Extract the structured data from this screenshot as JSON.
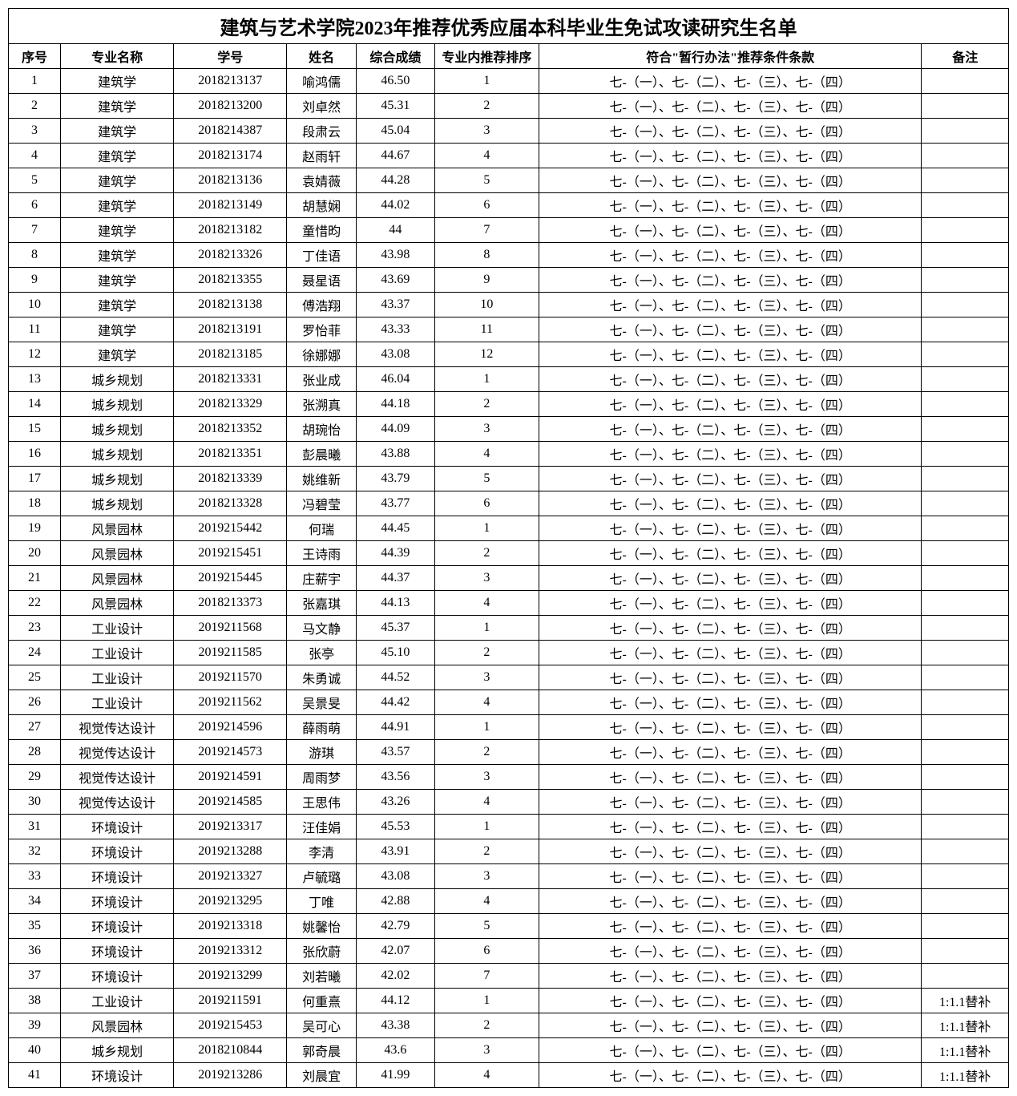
{
  "title": "建筑与艺术学院2023年推荐优秀应届本科毕业生免试攻读研究生名单",
  "columns": [
    "序号",
    "专业名称",
    "学号",
    "姓名",
    "综合成绩",
    "专业内推荐排序",
    "符合\"暂行办法\"推荐条件条款",
    "备注"
  ],
  "condition_text": "七-（一）、七-（二）、七-（三）、七-（四）",
  "remark_text": "1:1.1替补",
  "column_widths": {
    "seq": 60,
    "major": 130,
    "id": 130,
    "name": 80,
    "score": 90,
    "rank": 120,
    "cond": 440,
    "remark": 100
  },
  "font": {
    "family": "SimSun",
    "title_size": 24,
    "cell_size": 16
  },
  "colors": {
    "border": "#000000",
    "background": "#ffffff",
    "text": "#000000"
  },
  "rows": [
    {
      "seq": 1,
      "major": "建筑学",
      "id": "2018213137",
      "name": "喻鸿儒",
      "score": "46.50",
      "rank": 1,
      "remark": ""
    },
    {
      "seq": 2,
      "major": "建筑学",
      "id": "2018213200",
      "name": "刘卓然",
      "score": "45.31",
      "rank": 2,
      "remark": ""
    },
    {
      "seq": 3,
      "major": "建筑学",
      "id": "2018214387",
      "name": "段肃云",
      "score": "45.04",
      "rank": 3,
      "remark": ""
    },
    {
      "seq": 4,
      "major": "建筑学",
      "id": "2018213174",
      "name": "赵雨轩",
      "score": "44.67",
      "rank": 4,
      "remark": ""
    },
    {
      "seq": 5,
      "major": "建筑学",
      "id": "2018213136",
      "name": "袁婧薇",
      "score": "44.28",
      "rank": 5,
      "remark": ""
    },
    {
      "seq": 6,
      "major": "建筑学",
      "id": "2018213149",
      "name": "胡慧娴",
      "score": "44.02",
      "rank": 6,
      "remark": ""
    },
    {
      "seq": 7,
      "major": "建筑学",
      "id": "2018213182",
      "name": "童惜昀",
      "score": "44",
      "rank": 7,
      "remark": ""
    },
    {
      "seq": 8,
      "major": "建筑学",
      "id": "2018213326",
      "name": "丁佳语",
      "score": "43.98",
      "rank": 8,
      "remark": ""
    },
    {
      "seq": 9,
      "major": "建筑学",
      "id": "2018213355",
      "name": "聂星语",
      "score": "43.69",
      "rank": 9,
      "remark": ""
    },
    {
      "seq": 10,
      "major": "建筑学",
      "id": "2018213138",
      "name": "傅浩翔",
      "score": "43.37",
      "rank": 10,
      "remark": ""
    },
    {
      "seq": 11,
      "major": "建筑学",
      "id": "2018213191",
      "name": "罗怡菲",
      "score": "43.33",
      "rank": 11,
      "remark": ""
    },
    {
      "seq": 12,
      "major": "建筑学",
      "id": "2018213185",
      "name": "徐娜娜",
      "score": "43.08",
      "rank": 12,
      "remark": ""
    },
    {
      "seq": 13,
      "major": "城乡规划",
      "id": "2018213331",
      "name": "张业成",
      "score": "46.04",
      "rank": 1,
      "remark": ""
    },
    {
      "seq": 14,
      "major": "城乡规划",
      "id": "2018213329",
      "name": "张溯真",
      "score": "44.18",
      "rank": 2,
      "remark": ""
    },
    {
      "seq": 15,
      "major": "城乡规划",
      "id": "2018213352",
      "name": "胡琬怡",
      "score": "44.09",
      "rank": 3,
      "remark": ""
    },
    {
      "seq": 16,
      "major": "城乡规划",
      "id": "2018213351",
      "name": "彭晨曦",
      "score": "43.88",
      "rank": 4,
      "remark": ""
    },
    {
      "seq": 17,
      "major": "城乡规划",
      "id": "2018213339",
      "name": "姚维新",
      "score": "43.79",
      "rank": 5,
      "remark": ""
    },
    {
      "seq": 18,
      "major": "城乡规划",
      "id": "2018213328",
      "name": "冯碧莹",
      "score": "43.77",
      "rank": 6,
      "remark": ""
    },
    {
      "seq": 19,
      "major": "风景园林",
      "id": "2019215442",
      "name": "何瑞",
      "score": "44.45",
      "rank": 1,
      "remark": ""
    },
    {
      "seq": 20,
      "major": "风景园林",
      "id": "2019215451",
      "name": "王诗雨",
      "score": "44.39",
      "rank": 2,
      "remark": ""
    },
    {
      "seq": 21,
      "major": "风景园林",
      "id": "2019215445",
      "name": "庄薪宇",
      "score": "44.37",
      "rank": 3,
      "remark": ""
    },
    {
      "seq": 22,
      "major": "风景园林",
      "id": "2018213373",
      "name": "张嘉琪",
      "score": "44.13",
      "rank": 4,
      "remark": ""
    },
    {
      "seq": 23,
      "major": "工业设计",
      "id": "2019211568",
      "name": "马文静",
      "score": "45.37",
      "rank": 1,
      "remark": ""
    },
    {
      "seq": 24,
      "major": "工业设计",
      "id": "2019211585",
      "name": "张亭",
      "score": "45.10",
      "rank": 2,
      "remark": ""
    },
    {
      "seq": 25,
      "major": "工业设计",
      "id": "2019211570",
      "name": "朱勇诚",
      "score": "44.52",
      "rank": 3,
      "remark": ""
    },
    {
      "seq": 26,
      "major": "工业设计",
      "id": "2019211562",
      "name": "吴景旻",
      "score": "44.42",
      "rank": 4,
      "remark": ""
    },
    {
      "seq": 27,
      "major": "视觉传达设计",
      "id": "2019214596",
      "name": "薛雨萌",
      "score": "44.91",
      "rank": 1,
      "remark": ""
    },
    {
      "seq": 28,
      "major": "视觉传达设计",
      "id": "2019214573",
      "name": "游琪",
      "score": "43.57",
      "rank": 2,
      "remark": ""
    },
    {
      "seq": 29,
      "major": "视觉传达设计",
      "id": "2019214591",
      "name": "周雨梦",
      "score": "43.56",
      "rank": 3,
      "remark": ""
    },
    {
      "seq": 30,
      "major": "视觉传达设计",
      "id": "2019214585",
      "name": "王思伟",
      "score": "43.26",
      "rank": 4,
      "remark": ""
    },
    {
      "seq": 31,
      "major": "环境设计",
      "id": "2019213317",
      "name": "汪佳娟",
      "score": "45.53",
      "rank": 1,
      "remark": ""
    },
    {
      "seq": 32,
      "major": "环境设计",
      "id": "2019213288",
      "name": "李清",
      "score": "43.91",
      "rank": 2,
      "remark": ""
    },
    {
      "seq": 33,
      "major": "环境设计",
      "id": "2019213327",
      "name": "卢毓璐",
      "score": "43.08",
      "rank": 3,
      "remark": ""
    },
    {
      "seq": 34,
      "major": "环境设计",
      "id": "2019213295",
      "name": "丁唯",
      "score": "42.88",
      "rank": 4,
      "remark": ""
    },
    {
      "seq": 35,
      "major": "环境设计",
      "id": "2019213318",
      "name": "姚馨怡",
      "score": "42.79",
      "rank": 5,
      "remark": ""
    },
    {
      "seq": 36,
      "major": "环境设计",
      "id": "2019213312",
      "name": "张欣蔚",
      "score": "42.07",
      "rank": 6,
      "remark": ""
    },
    {
      "seq": 37,
      "major": "环境设计",
      "id": "2019213299",
      "name": "刘若曦",
      "score": "42.02",
      "rank": 7,
      "remark": ""
    },
    {
      "seq": 38,
      "major": "工业设计",
      "id": "2019211591",
      "name": "何重熹",
      "score": "44.12",
      "rank": 1,
      "remark": "1:1.1替补"
    },
    {
      "seq": 39,
      "major": "风景园林",
      "id": "2019215453",
      "name": "吴可心",
      "score": "43.38",
      "rank": 2,
      "remark": "1:1.1替补"
    },
    {
      "seq": 40,
      "major": "城乡规划",
      "id": "2018210844",
      "name": "郭奇晨",
      "score": "43.6",
      "rank": 3,
      "remark": "1:1.1替补"
    },
    {
      "seq": 41,
      "major": "环境设计",
      "id": "2019213286",
      "name": "刘晨宜",
      "score": "41.99",
      "rank": 4,
      "remark": "1:1.1替补"
    }
  ]
}
